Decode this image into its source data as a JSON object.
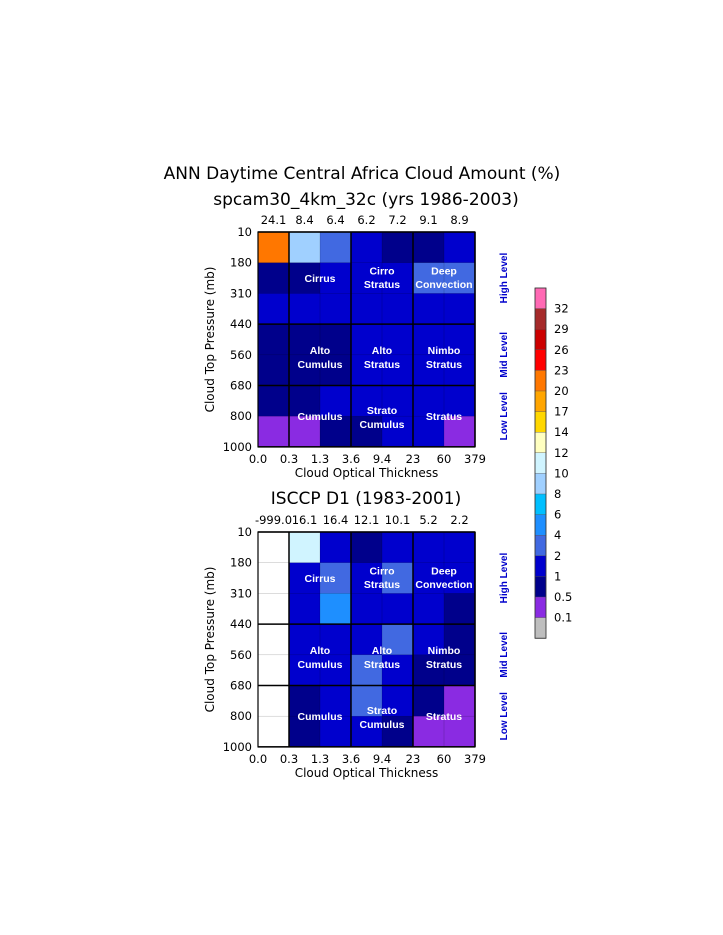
{
  "figure": {
    "title_line1": "ANN Daytime Central Africa Cloud Amount (%)"
  },
  "colorbar": {
    "bounds": [
      "32",
      "29",
      "26",
      "23",
      "20",
      "17",
      "14",
      "12",
      "10",
      "8",
      "6",
      "4",
      "2",
      "1",
      "0.5",
      "0.1"
    ],
    "colors": [
      "#ff69b4",
      "#a52a2a",
      "#cc0000",
      "#ff0000",
      "#ff7700",
      "#ffa500",
      "#ffd700",
      "#ffffc0",
      "#d0f4ff",
      "#a0d0ff",
      "#00bfff",
      "#1e8fff",
      "#4169e1",
      "#0000cd",
      "#00008b",
      "#8a2be2",
      "#bebebe"
    ]
  },
  "chart_data": [
    {
      "type": "heatmap",
      "title": "spcam30_4km_32c (yrs 1986-2003)",
      "xlabel": "Cloud Optical Thickness",
      "ylabel": "Cloud Top Pressure (mb)",
      "x_ticks": [
        "0.0",
        "0.3",
        "1.3",
        "3.6",
        "9.4",
        "23",
        "60",
        "379"
      ],
      "y_ticks": [
        "10",
        "180",
        "310",
        "440",
        "560",
        "680",
        "800",
        "1000"
      ],
      "column_totals": [
        "24.1",
        "8.4",
        "6.4",
        "6.2",
        "7.2",
        "9.1",
        "8.9"
      ],
      "cells": [
        [
          20,
          8,
          2,
          1,
          0.5,
          0.5,
          1
        ],
        [
          0.5,
          0.5,
          1,
          1,
          1,
          2,
          2
        ],
        [
          1,
          1,
          1,
          1,
          1,
          1,
          1
        ],
        [
          0.5,
          0.5,
          0.5,
          1,
          1,
          1,
          1
        ],
        [
          0.5,
          0.5,
          0.5,
          1,
          1,
          1,
          1
        ],
        [
          0.5,
          0.5,
          1,
          1,
          1,
          1,
          1
        ],
        [
          0.1,
          0.1,
          0.5,
          0.5,
          1,
          1,
          0.1
        ]
      ],
      "labels": [
        "Cirrus",
        "Cirro",
        "Stratus",
        "Deep",
        "Convection",
        "Alto",
        "Cumulus",
        "Alto",
        "Stratus",
        "Nimbo",
        "Stratus",
        "Cumulus",
        "Strato",
        "Cumulus",
        "Stratus"
      ],
      "levels": [
        "High Level",
        "Mid Level",
        "Low Level"
      ]
    },
    {
      "type": "heatmap",
      "title": "ISCCP D1 (1983-2001)",
      "xlabel": "Cloud Optical Thickness",
      "ylabel": "Cloud Top Pressure (mb)",
      "x_ticks": [
        "0.0",
        "0.3",
        "1.3",
        "3.6",
        "9.4",
        "23",
        "60",
        "379"
      ],
      "y_ticks": [
        "10",
        "180",
        "310",
        "440",
        "560",
        "680",
        "800",
        "1000"
      ],
      "column_totals": [
        "-999.0",
        "16.1",
        "16.4",
        "12.1",
        "10.1",
        "5.2",
        "2.2"
      ],
      "cells": [
        [
          null,
          10,
          1,
          0.5,
          1,
          1,
          1
        ],
        [
          null,
          1,
          2,
          1,
          2,
          1,
          1
        ],
        [
          null,
          1,
          4,
          1,
          1,
          1,
          0.5
        ],
        [
          null,
          1,
          1,
          1,
          2,
          1,
          0.5
        ],
        [
          null,
          1,
          1,
          2,
          1,
          0.5,
          0.5
        ],
        [
          null,
          0.5,
          1,
          2,
          1,
          0.5,
          0.1
        ],
        [
          null,
          0.5,
          1,
          1,
          0.5,
          0.1,
          0.1
        ]
      ],
      "labels": [
        "Cirrus",
        "Cirro",
        "Stratus",
        "Deep",
        "Convection",
        "Alto",
        "Cumulus",
        "Alto",
        "Stratus",
        "Nimbo",
        "Stratus",
        "Cumulus",
        "Strato",
        "Cumulus",
        "Stratus"
      ],
      "levels": [
        "High Level",
        "Mid Level",
        "Low Level"
      ]
    }
  ]
}
